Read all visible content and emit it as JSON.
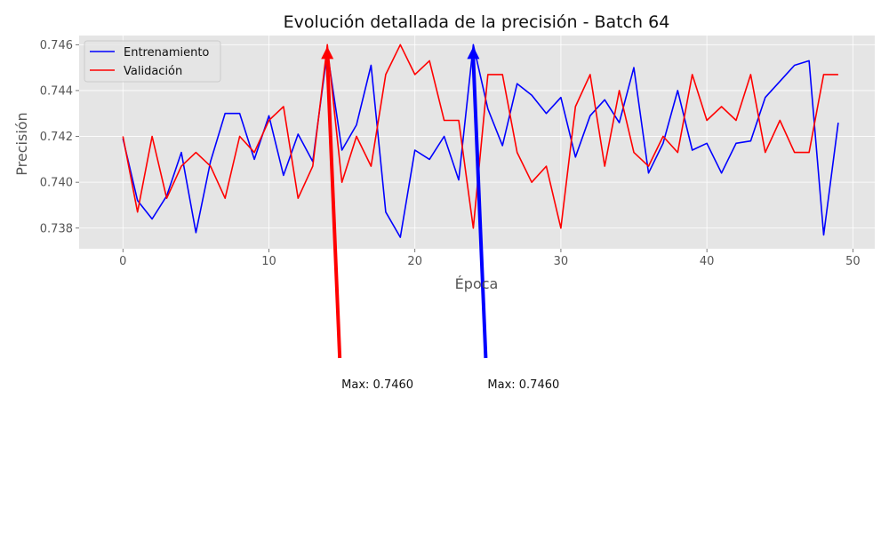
{
  "chart_data": {
    "type": "line",
    "title": "Evolución detallada de la precisión - Batch 64",
    "xlabel": "Época",
    "ylabel": "Precisión",
    "xlim": [
      -3,
      51.5
    ],
    "ylim": [
      0.7371,
      0.7464
    ],
    "xticks": [
      0,
      10,
      20,
      30,
      40,
      50
    ],
    "yticks": [
      0.738,
      0.74,
      0.742,
      0.744,
      0.746
    ],
    "ytick_labels": [
      "0.738",
      "0.740",
      "0.742",
      "0.744",
      "0.746"
    ],
    "grid": true,
    "legend_position": "top-left",
    "x": [
      0,
      1,
      2,
      3,
      4,
      5,
      6,
      7,
      8,
      9,
      10,
      11,
      12,
      13,
      14,
      15,
      16,
      17,
      18,
      19,
      20,
      21,
      22,
      23,
      24,
      25,
      26,
      27,
      28,
      29,
      30,
      31,
      32,
      33,
      34,
      35,
      36,
      37,
      38,
      39,
      40,
      41,
      42,
      43,
      44,
      45,
      46,
      47,
      48,
      49
    ],
    "series": [
      {
        "name": "Entrenamiento",
        "color": "#0000ff",
        "values": [
          0.7419,
          0.7392,
          0.7384,
          0.7394,
          0.7413,
          0.7378,
          0.7409,
          0.743,
          0.743,
          0.741,
          0.7429,
          0.7403,
          0.7421,
          0.7409,
          0.7457,
          0.7414,
          0.7425,
          0.7451,
          0.7387,
          0.7376,
          0.7414,
          0.741,
          0.742,
          0.7401,
          0.746,
          0.7432,
          0.7416,
          0.7443,
          0.7438,
          0.743,
          0.7437,
          0.7411,
          0.7429,
          0.7436,
          0.7426,
          0.745,
          0.7404,
          0.7417,
          0.744,
          0.7414,
          0.7417,
          0.7404,
          0.7417,
          0.7418,
          0.7437,
          0.7444,
          0.7451,
          0.7453,
          0.7377,
          0.7426
        ]
      },
      {
        "name": "Validación",
        "color": "#ff0000",
        "values": [
          0.742,
          0.7387,
          0.742,
          0.7393,
          0.7407,
          0.7413,
          0.7407,
          0.7393,
          0.742,
          0.7413,
          0.7427,
          0.7433,
          0.7393,
          0.7407,
          0.746,
          0.74,
          0.742,
          0.7407,
          0.7447,
          0.746,
          0.7447,
          0.7453,
          0.7427,
          0.7427,
          0.738,
          0.7447,
          0.7447,
          0.7413,
          0.74,
          0.7407,
          0.738,
          0.7433,
          0.7447,
          0.7407,
          0.744,
          0.7413,
          0.7407,
          0.742,
          0.7413,
          0.7447,
          0.7427,
          0.7433,
          0.7427,
          0.7447,
          0.7413,
          0.7427,
          0.7413,
          0.7413,
          0.7447,
          0.7447
        ]
      }
    ],
    "annotations": [
      {
        "text": "Max: 0.7460",
        "series": "Validación",
        "color": "#ff0000",
        "x": 14,
        "y": 0.746
      },
      {
        "text": "Max: 0.7460",
        "series": "Entrenamiento",
        "color": "#0000ff",
        "x": 24,
        "y": 0.746
      }
    ]
  }
}
